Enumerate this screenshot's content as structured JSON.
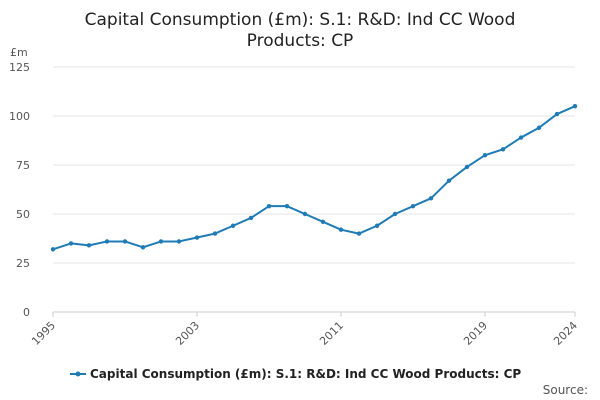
{
  "chart_data": {
    "type": "line",
    "title_lines": [
      "Capital Consumption (£m): S.1: R&D: Ind CC Wood",
      "Products: CP"
    ],
    "ylabel": "£m",
    "ylim": [
      0,
      125
    ],
    "yticks": [
      0,
      25,
      50,
      75,
      100,
      125
    ],
    "x_tick_labels": [
      "1995",
      "2003",
      "2011",
      "2019",
      "2024"
    ],
    "grid": true,
    "legend_position": "bottom",
    "series": [
      {
        "name": "Capital Consumption (£m): S.1: R&D: Ind CC Wood Products: CP",
        "color": "#1f7bb5",
        "x": [
          1995,
          1996,
          1997,
          1998,
          1999,
          2000,
          2001,
          2002,
          2003,
          2004,
          2005,
          2006,
          2007,
          2008,
          2009,
          2010,
          2011,
          2012,
          2013,
          2014,
          2015,
          2016,
          2017,
          2018,
          2019,
          2020,
          2021,
          2022,
          2023,
          2024
        ],
        "values": [
          32,
          35,
          34,
          36,
          36,
          33,
          36,
          36,
          38,
          40,
          44,
          48,
          54,
          54,
          50,
          46,
          42,
          40,
          44,
          50,
          54,
          58,
          67,
          74,
          80,
          83,
          89,
          94,
          101,
          105
        ]
      }
    ],
    "source_label": "Source:"
  }
}
